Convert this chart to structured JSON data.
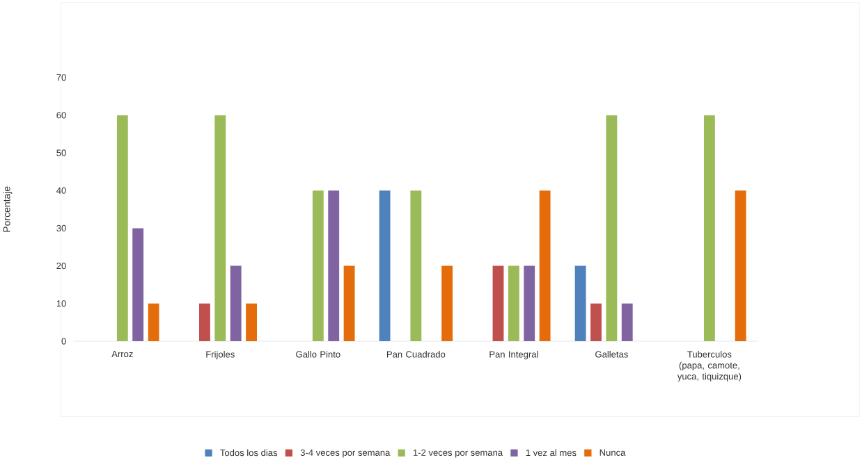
{
  "chart_data": {
    "type": "bar",
    "ylabel": "Porcentaje",
    "categories": [
      "Arroz",
      "Frijoles",
      "Gallo Pinto",
      "Pan Cuadrado",
      "Pan Integral",
      "Galletas",
      "Tuberculos (papa, camote, yuca, tiquizque)"
    ],
    "series": [
      {
        "name": "Todos los dias",
        "color": "#4f81bd",
        "values": [
          0,
          0,
          0,
          40,
          0,
          20,
          0
        ]
      },
      {
        "name": "3-4 veces por semana",
        "color": "#c0504d",
        "values": [
          0,
          10,
          0,
          0,
          20,
          10,
          0
        ]
      },
      {
        "name": "1-2 veces por semana",
        "color": "#9bbb59",
        "values": [
          60,
          60,
          40,
          40,
          20,
          60,
          60
        ]
      },
      {
        "name": "1 vez al mes",
        "color": "#8064a2",
        "values": [
          30,
          20,
          40,
          0,
          20,
          10,
          0
        ]
      },
      {
        "name": "Nunca",
        "color": "#e46c0a",
        "values": [
          10,
          10,
          20,
          20,
          40,
          0,
          40
        ]
      }
    ],
    "ylim": [
      0,
      70
    ],
    "yticks": [
      0,
      10,
      20,
      30,
      40,
      50,
      60,
      70
    ],
    "legend": "bottom"
  }
}
